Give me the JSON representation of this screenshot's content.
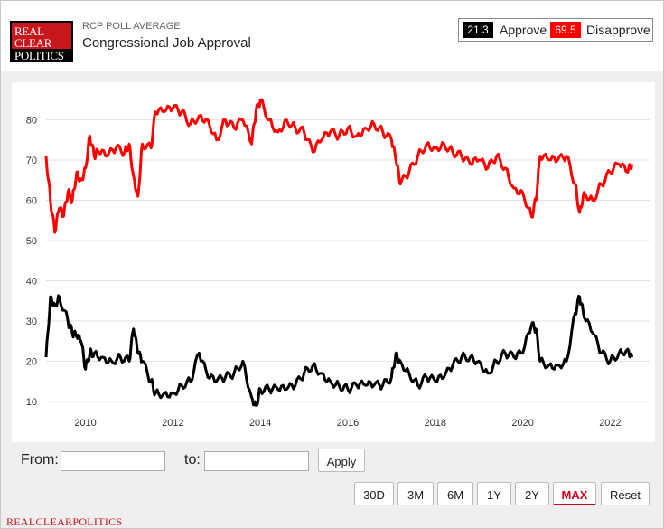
{
  "header": {
    "logo": {
      "line1": "REAL",
      "line2": "CLEAR",
      "line3": "POLITICS"
    },
    "subtitle": "RCP POLL AVERAGE",
    "title": "Congressional Job Approval"
  },
  "legend": {
    "approve_value": "21.3",
    "approve_label": "Approve",
    "disapprove_value": "69.5",
    "disapprove_label": "Disapprove",
    "approve_color": "#000000",
    "disapprove_color": "#ff0000"
  },
  "controls": {
    "from_label": "From:",
    "to_label": "to:",
    "from_value": "",
    "to_value": "",
    "apply_label": "Apply",
    "range_buttons": [
      "30D",
      "3M",
      "6M",
      "1Y",
      "2Y",
      "MAX",
      "Reset"
    ],
    "active_range": "MAX"
  },
  "footer": "REALCLEARPOLITICS",
  "chart_data": {
    "type": "line",
    "x_tick_labels": [
      "2010",
      "2012",
      "2014",
      "2016",
      "2018",
      "2020",
      "2022"
    ],
    "x_tick_years": [
      2010,
      2012,
      2014,
      2016,
      2018,
      2020,
      2022
    ],
    "xlim": [
      2009.1,
      2022.9
    ],
    "y_tick_labels": [
      "10",
      "20",
      "30",
      "40",
      "50",
      "60",
      "70",
      "80"
    ],
    "ylim": [
      3,
      88
    ],
    "grid": true,
    "series": [
      {
        "name": "Disapprove",
        "color": "#ff0000",
        "x": [
          2009.1,
          2009.2,
          2009.3,
          2009.4,
          2009.5,
          2009.6,
          2009.7,
          2009.8,
          2009.9,
          2010.0,
          2010.1,
          2010.2,
          2010.3,
          2010.5,
          2010.7,
          2010.9,
          2011.0,
          2011.1,
          2011.2,
          2011.3,
          2011.5,
          2011.6,
          2011.8,
          2012.0,
          2012.2,
          2012.4,
          2012.6,
          2012.8,
          2013.0,
          2013.2,
          2013.4,
          2013.6,
          2013.8,
          2013.9,
          2014.0,
          2014.2,
          2014.4,
          2014.6,
          2014.8,
          2015.0,
          2015.2,
          2015.4,
          2015.6,
          2015.8,
          2016.0,
          2016.2,
          2016.4,
          2016.6,
          2016.8,
          2017.0,
          2017.1,
          2017.2,
          2017.4,
          2017.6,
          2017.8,
          2018.0,
          2018.2,
          2018.4,
          2018.6,
          2018.8,
          2019.0,
          2019.2,
          2019.4,
          2019.6,
          2019.8,
          2020.0,
          2020.2,
          2020.3,
          2020.4,
          2020.6,
          2020.8,
          2021.0,
          2021.2,
          2021.3,
          2021.4,
          2021.6,
          2021.8,
          2022.0,
          2022.2,
          2022.4,
          2022.5
        ],
        "values": [
          71,
          60,
          52,
          58,
          56,
          62,
          60,
          67,
          65,
          68,
          76,
          71,
          72,
          71,
          73,
          72,
          74,
          66,
          61,
          74,
          73,
          82,
          82,
          83,
          82,
          79,
          81,
          80,
          75,
          80,
          78,
          80,
          74,
          82,
          85,
          80,
          77,
          80,
          78,
          77,
          72,
          75,
          77,
          76,
          78,
          76,
          78,
          79,
          77,
          75,
          70,
          64,
          67,
          71,
          74,
          73,
          74,
          72,
          71,
          69,
          70,
          68,
          71,
          68,
          63,
          62,
          56,
          60,
          71,
          70,
          70,
          71,
          64,
          57,
          62,
          60,
          64,
          67,
          69,
          67,
          69
        ]
      },
      {
        "name": "Approve",
        "color": "#000000",
        "x": [
          2009.1,
          2009.2,
          2009.3,
          2009.4,
          2009.6,
          2009.7,
          2009.8,
          2009.9,
          2010.0,
          2010.1,
          2010.2,
          2010.4,
          2010.6,
          2010.8,
          2011.0,
          2011.1,
          2011.2,
          2011.3,
          2011.5,
          2011.6,
          2011.8,
          2012.0,
          2012.2,
          2012.4,
          2012.6,
          2012.8,
          2013.0,
          2013.2,
          2013.4,
          2013.6,
          2013.8,
          2013.9,
          2014.0,
          2014.2,
          2014.4,
          2014.6,
          2014.8,
          2015.0,
          2015.2,
          2015.4,
          2015.6,
          2015.8,
          2016.0,
          2016.2,
          2016.4,
          2016.6,
          2016.8,
          2017.0,
          2017.1,
          2017.2,
          2017.4,
          2017.6,
          2017.8,
          2018.0,
          2018.2,
          2018.4,
          2018.6,
          2018.8,
          2019.0,
          2019.2,
          2019.4,
          2019.6,
          2019.8,
          2020.0,
          2020.2,
          2020.3,
          2020.4,
          2020.6,
          2020.8,
          2021.0,
          2021.2,
          2021.3,
          2021.4,
          2021.6,
          2021.8,
          2022.0,
          2022.2,
          2022.4,
          2022.5
        ],
        "values": [
          21,
          36,
          34,
          36,
          30,
          27,
          26,
          25,
          18,
          22,
          22,
          21,
          20,
          21,
          20,
          28,
          22,
          20,
          15,
          12,
          12,
          12,
          14,
          15,
          22,
          16,
          15,
          16,
          17,
          20,
          11,
          9,
          13,
          13,
          13,
          13,
          14,
          17,
          19,
          17,
          15,
          14,
          13,
          14,
          14,
          14,
          14,
          16,
          22,
          20,
          17,
          14,
          16,
          15,
          16,
          19,
          21,
          21,
          20,
          17,
          20,
          22,
          21,
          22,
          29,
          28,
          20,
          19,
          19,
          20,
          32,
          36,
          31,
          27,
          22,
          20,
          22,
          23,
          21
        ]
      }
    ]
  }
}
